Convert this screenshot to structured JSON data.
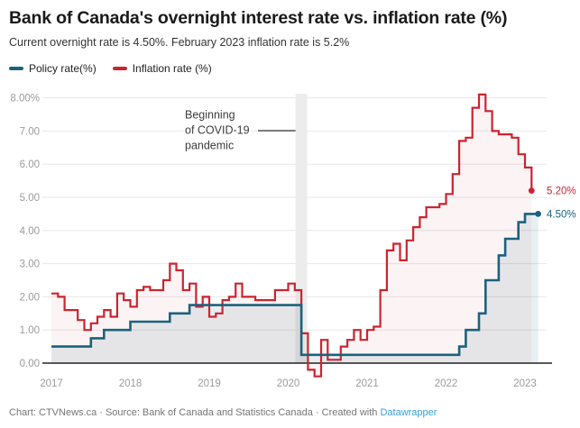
{
  "header": {
    "title": "Bank of Canada's overnight interest rate vs. inflation rate (%)",
    "subtitle": "Current overnight rate is 4.50%. February 2023 inflation rate is 5.2%"
  },
  "legend": {
    "items": [
      {
        "label": "Policy rate(%)",
        "color": "#1a627d"
      },
      {
        "label": "Inflation rate (%)",
        "color": "#cb2431"
      }
    ]
  },
  "annotation": {
    "lines": [
      "Beginning",
      "of COVID-19",
      "pandemic"
    ]
  },
  "end_labels": {
    "inflation": "5.20%",
    "policy": "4.50%"
  },
  "footer": {
    "text": "Chart: CTVNews.ca · Source: Bank of Canada and Statistics Canada · Created with ",
    "link_label": "Datawrapper",
    "link_color": "#35a0d9"
  },
  "chart_data": {
    "type": "line",
    "step": true,
    "title": "Bank of Canada's overnight interest rate vs. inflation rate (%)",
    "x_unit": "month",
    "x_start": "2017-01",
    "x_tick_labels": [
      "2017",
      "2018",
      "2019",
      "2020",
      "2021",
      "2022",
      "2023"
    ],
    "y_tick_labels": [
      "0.00",
      "1.00",
      "2.00",
      "3.00",
      "4.00",
      "5.00",
      "6.00",
      "7.00",
      "8.00%"
    ],
    "ylim": [
      -0.6,
      8.3
    ],
    "grid": "horizontal",
    "legend_position": "top-left",
    "zero_baseline": true,
    "covid_band": {
      "month_index": 38,
      "label": "Beginning of COVID-19 pandemic"
    },
    "series": [
      {
        "name": "Policy rate(%)",
        "color": "#1a627d",
        "fill": "rgba(26,98,125,0.10)",
        "end_label": "4.50%",
        "values": [
          0.5,
          0.5,
          0.5,
          0.5,
          0.5,
          0.5,
          0.75,
          0.75,
          1.0,
          1.0,
          1.0,
          1.0,
          1.25,
          1.25,
          1.25,
          1.25,
          1.25,
          1.25,
          1.5,
          1.5,
          1.5,
          1.75,
          1.75,
          1.75,
          1.75,
          1.75,
          1.75,
          1.75,
          1.75,
          1.75,
          1.75,
          1.75,
          1.75,
          1.75,
          1.75,
          1.75,
          1.75,
          1.75,
          0.25,
          0.25,
          0.25,
          0.25,
          0.25,
          0.25,
          0.25,
          0.25,
          0.25,
          0.25,
          0.25,
          0.25,
          0.25,
          0.25,
          0.25,
          0.25,
          0.25,
          0.25,
          0.25,
          0.25,
          0.25,
          0.25,
          0.25,
          0.25,
          0.5,
          1.0,
          1.0,
          1.5,
          2.5,
          2.5,
          3.25,
          3.75,
          3.75,
          4.25,
          4.5,
          4.5,
          4.5
        ]
      },
      {
        "name": "Inflation rate (%)",
        "color": "#cb2431",
        "fill": "rgba(203,36,49,0.05)",
        "end_label": "5.20%",
        "values": [
          2.1,
          2.0,
          1.6,
          1.6,
          1.3,
          1.0,
          1.2,
          1.4,
          1.6,
          1.4,
          2.1,
          1.9,
          1.7,
          2.2,
          2.3,
          2.2,
          2.2,
          2.5,
          3.0,
          2.8,
          2.2,
          2.4,
          1.7,
          2.0,
          1.4,
          1.5,
          1.9,
          2.0,
          2.4,
          2.0,
          2.0,
          1.9,
          1.9,
          1.9,
          2.2,
          2.2,
          2.4,
          2.2,
          0.9,
          -0.2,
          -0.4,
          0.7,
          0.1,
          0.1,
          0.5,
          0.7,
          1.0,
          0.7,
          1.0,
          1.1,
          2.2,
          3.4,
          3.6,
          3.1,
          3.7,
          4.1,
          4.4,
          4.7,
          4.7,
          4.8,
          5.1,
          5.7,
          6.7,
          6.8,
          7.7,
          8.1,
          7.6,
          7.0,
          6.9,
          6.9,
          6.8,
          6.3,
          5.9,
          5.2
        ]
      }
    ]
  }
}
